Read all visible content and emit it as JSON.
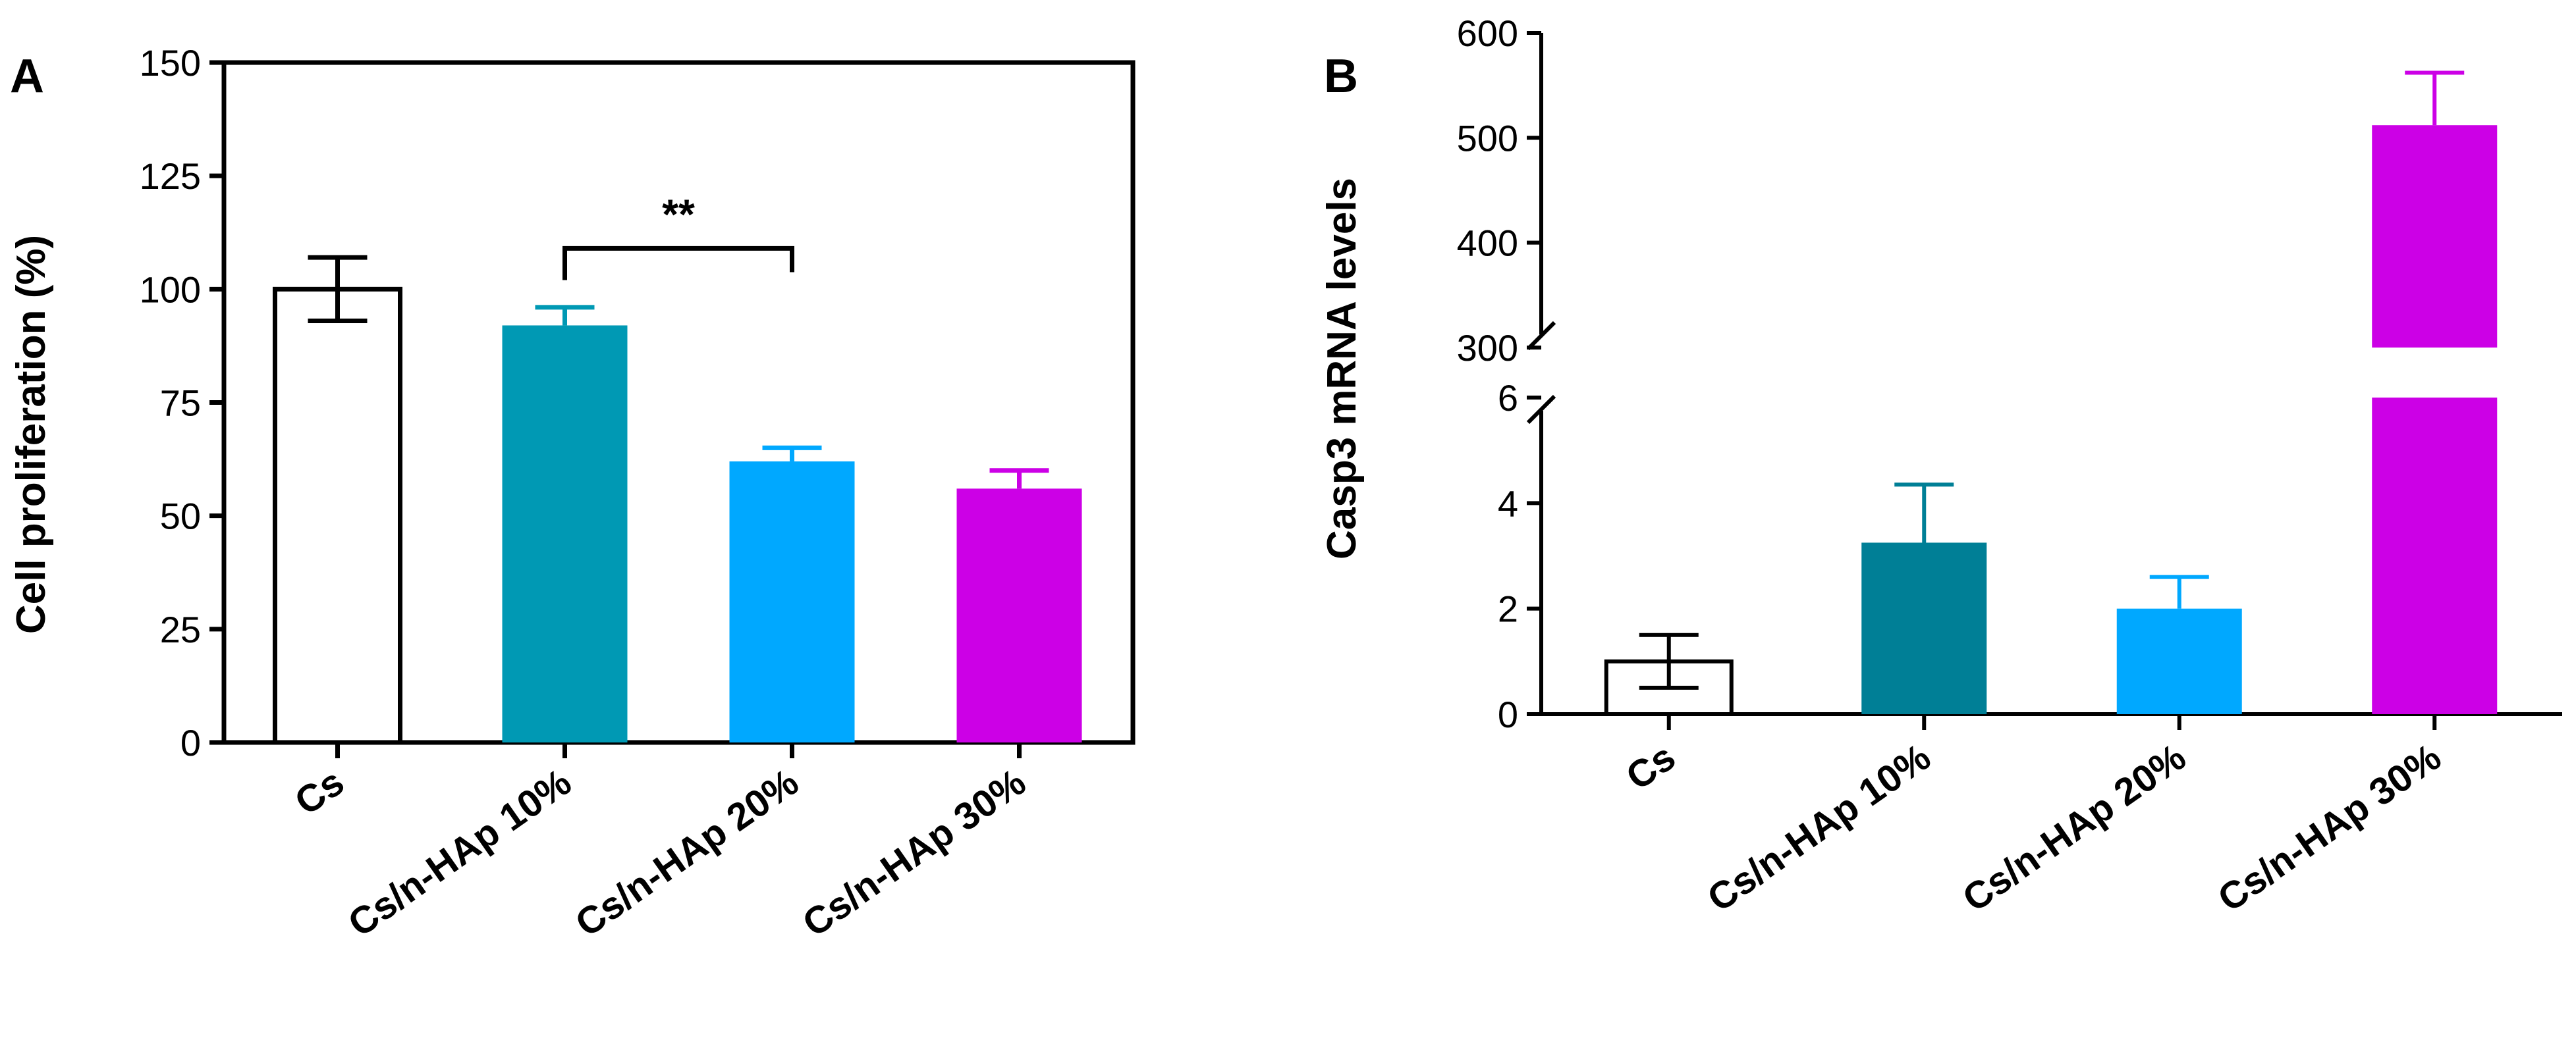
{
  "chart_data": [
    {
      "panel": "A",
      "type": "bar",
      "ylabel": "Cell proliferation (%)",
      "xlabel": "",
      "ylim": [
        0,
        150
      ],
      "yticks": [
        0,
        25,
        50,
        75,
        100,
        125,
        150
      ],
      "categories": [
        "Cs",
        "Cs/n-HAp 10%",
        "Cs/n-HAp 20%",
        "Cs/n-HAp 30%"
      ],
      "values": [
        100,
        92,
        62,
        56
      ],
      "errors": [
        7,
        4,
        3,
        4
      ],
      "error_style": [
        "both",
        "up",
        "up",
        "up"
      ],
      "colors": [
        "#ffffff",
        "#0099b4",
        "#00a8ff",
        "#cc00e6"
      ],
      "significance": [
        {
          "from": 1,
          "to": 2,
          "label": "**"
        }
      ]
    },
    {
      "panel": "B",
      "type": "bar",
      "ylabel": "Casp3 mRNA levels",
      "xlabel": "",
      "axis_break": {
        "lower_range": [
          0,
          6
        ],
        "upper_range": [
          300,
          600
        ]
      },
      "yticks_lower": [
        0,
        2,
        4,
        6
      ],
      "yticks_upper": [
        300,
        400,
        500,
        600
      ],
      "categories": [
        "Cs",
        "Cs/n-HAp 10%",
        "Cs/n-HAp 20%",
        "Cs/n-HAp 30%"
      ],
      "values": [
        1,
        3.25,
        2,
        512
      ],
      "errors": [
        0.5,
        1.1,
        0.6,
        50
      ],
      "error_style": [
        "both",
        "up",
        "up",
        "up"
      ],
      "colors": [
        "#ffffff",
        "#007f96",
        "#00a8ff",
        "#cc00e6"
      ]
    }
  ]
}
